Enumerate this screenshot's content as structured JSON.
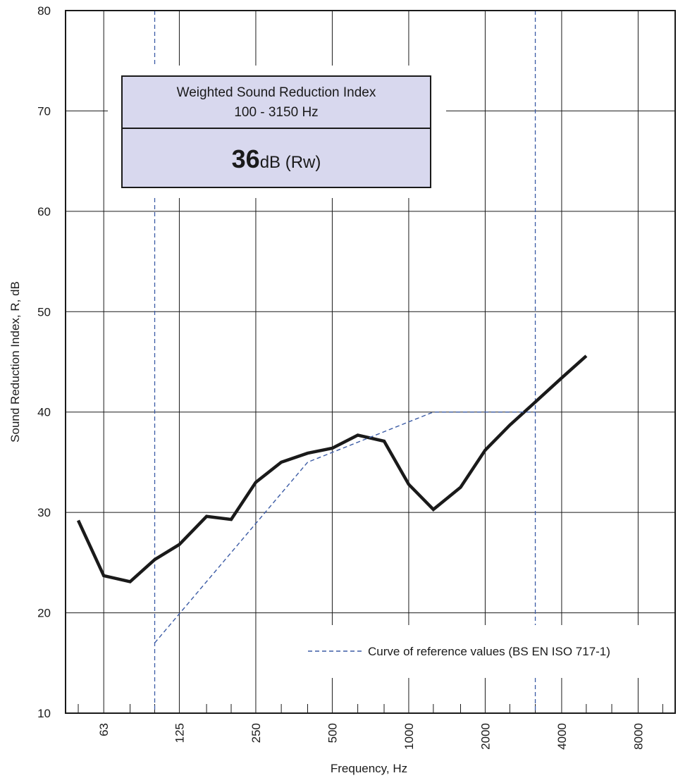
{
  "chart_data": {
    "type": "line",
    "xlabel": "Frequency, Hz",
    "ylabel": "Sound Reduction Index, R, dB",
    "ylim": [
      10,
      80
    ],
    "y_ticks": [
      10,
      20,
      30,
      40,
      50,
      60,
      70,
      80
    ],
    "x_scale": "log-third-octave",
    "x_range_hz": [
      50,
      10000
    ],
    "x_tick_labels": [
      "63",
      "125",
      "250",
      "500",
      "1000",
      "2000",
      "4000",
      "8000"
    ],
    "grid": true,
    "legend_position": "bottom-right",
    "box": {
      "title_line1": "Weighted Sound Reduction Index",
      "title_line2": "100 - 3150 Hz",
      "value": "36",
      "unit": "dB (Rw)"
    },
    "series": [
      {
        "name": "",
        "x": [
          50,
          63,
          80,
          100,
          125,
          160,
          200,
          250,
          315,
          400,
          500,
          630,
          800,
          1000,
          1250,
          1600,
          2000,
          2500,
          3150,
          4000,
          5000
        ],
        "y": [
          29.2,
          23.7,
          23.1,
          25.3,
          26.8,
          29.6,
          29.3,
          33.0,
          35.0,
          35.9,
          36.4,
          37.7,
          37.1,
          32.8,
          30.3,
          32.5,
          36.2,
          38.7,
          41.0,
          43.4,
          45.6
        ],
        "color": "#1a1a1a",
        "style": "solid"
      },
      {
        "name": "Curve of reference values (BS EN ISO 717-1)",
        "x": [
          100,
          400,
          1250,
          3150
        ],
        "y": [
          17,
          35,
          40,
          40
        ],
        "color": "#3b5ba5",
        "style": "dashed"
      }
    ],
    "range_markers_hz": [
      100,
      3150
    ]
  }
}
